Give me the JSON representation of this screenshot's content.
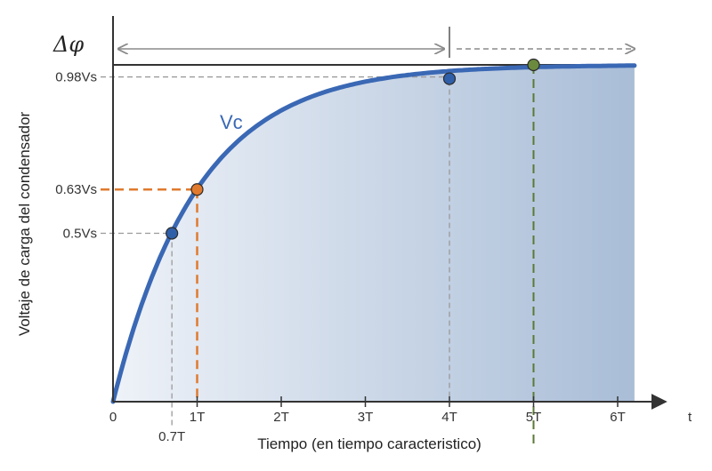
{
  "chart_data": {
    "type": "line",
    "xlabel": "Tiempo (en tiempo caracteristico)",
    "ylabel": "Voltaje de carga del condensador",
    "x_axis_end_label": "t",
    "delta_label": "Δφ",
    "series": [
      {
        "name": "Vc",
        "formula": "1 - exp(-t/T)",
        "color": "#3a68b4"
      }
    ],
    "x_ticks": [
      {
        "value": 0,
        "label": "0"
      },
      {
        "value": 1,
        "label": "1T"
      },
      {
        "value": 2,
        "label": "2T"
      },
      {
        "value": 3,
        "label": "3T"
      },
      {
        "value": 4,
        "label": "4T"
      },
      {
        "value": 5,
        "label": "5T"
      },
      {
        "value": 6,
        "label": "6T"
      }
    ],
    "xlim": [
      0,
      6.6
    ],
    "ylim": [
      0,
      1.0
    ],
    "marked_points": [
      {
        "x": 0.7,
        "y": 0.5,
        "x_label": "0.7T",
        "y_label": "0.5Vs",
        "color": "#2f5fa8",
        "guide_color": "#9a9a9a"
      },
      {
        "x": 1,
        "y": 0.63,
        "x_label": "1T",
        "y_label": "0.63Vs",
        "color": "#e07a2e",
        "guide_color": "#e07a2e"
      },
      {
        "x": 4,
        "y": 0.98,
        "x_label": "4T",
        "y_label": "0.98Vs",
        "color": "#2f5fa8",
        "guide_color": "#9a9a9a"
      },
      {
        "x": 5,
        "y": 1.0,
        "x_label": "5T",
        "y_label": "",
        "color": "#6b8a3e",
        "guide_color": "#5a7a36"
      }
    ],
    "colors": {
      "axis": "#333333",
      "fill_start": "#eef2f8",
      "fill_end": "#a9bdd7",
      "arrow": "#8a8a8a",
      "tick_orange": "#e07a2e",
      "tick_green": "#6b8a3e"
    }
  }
}
